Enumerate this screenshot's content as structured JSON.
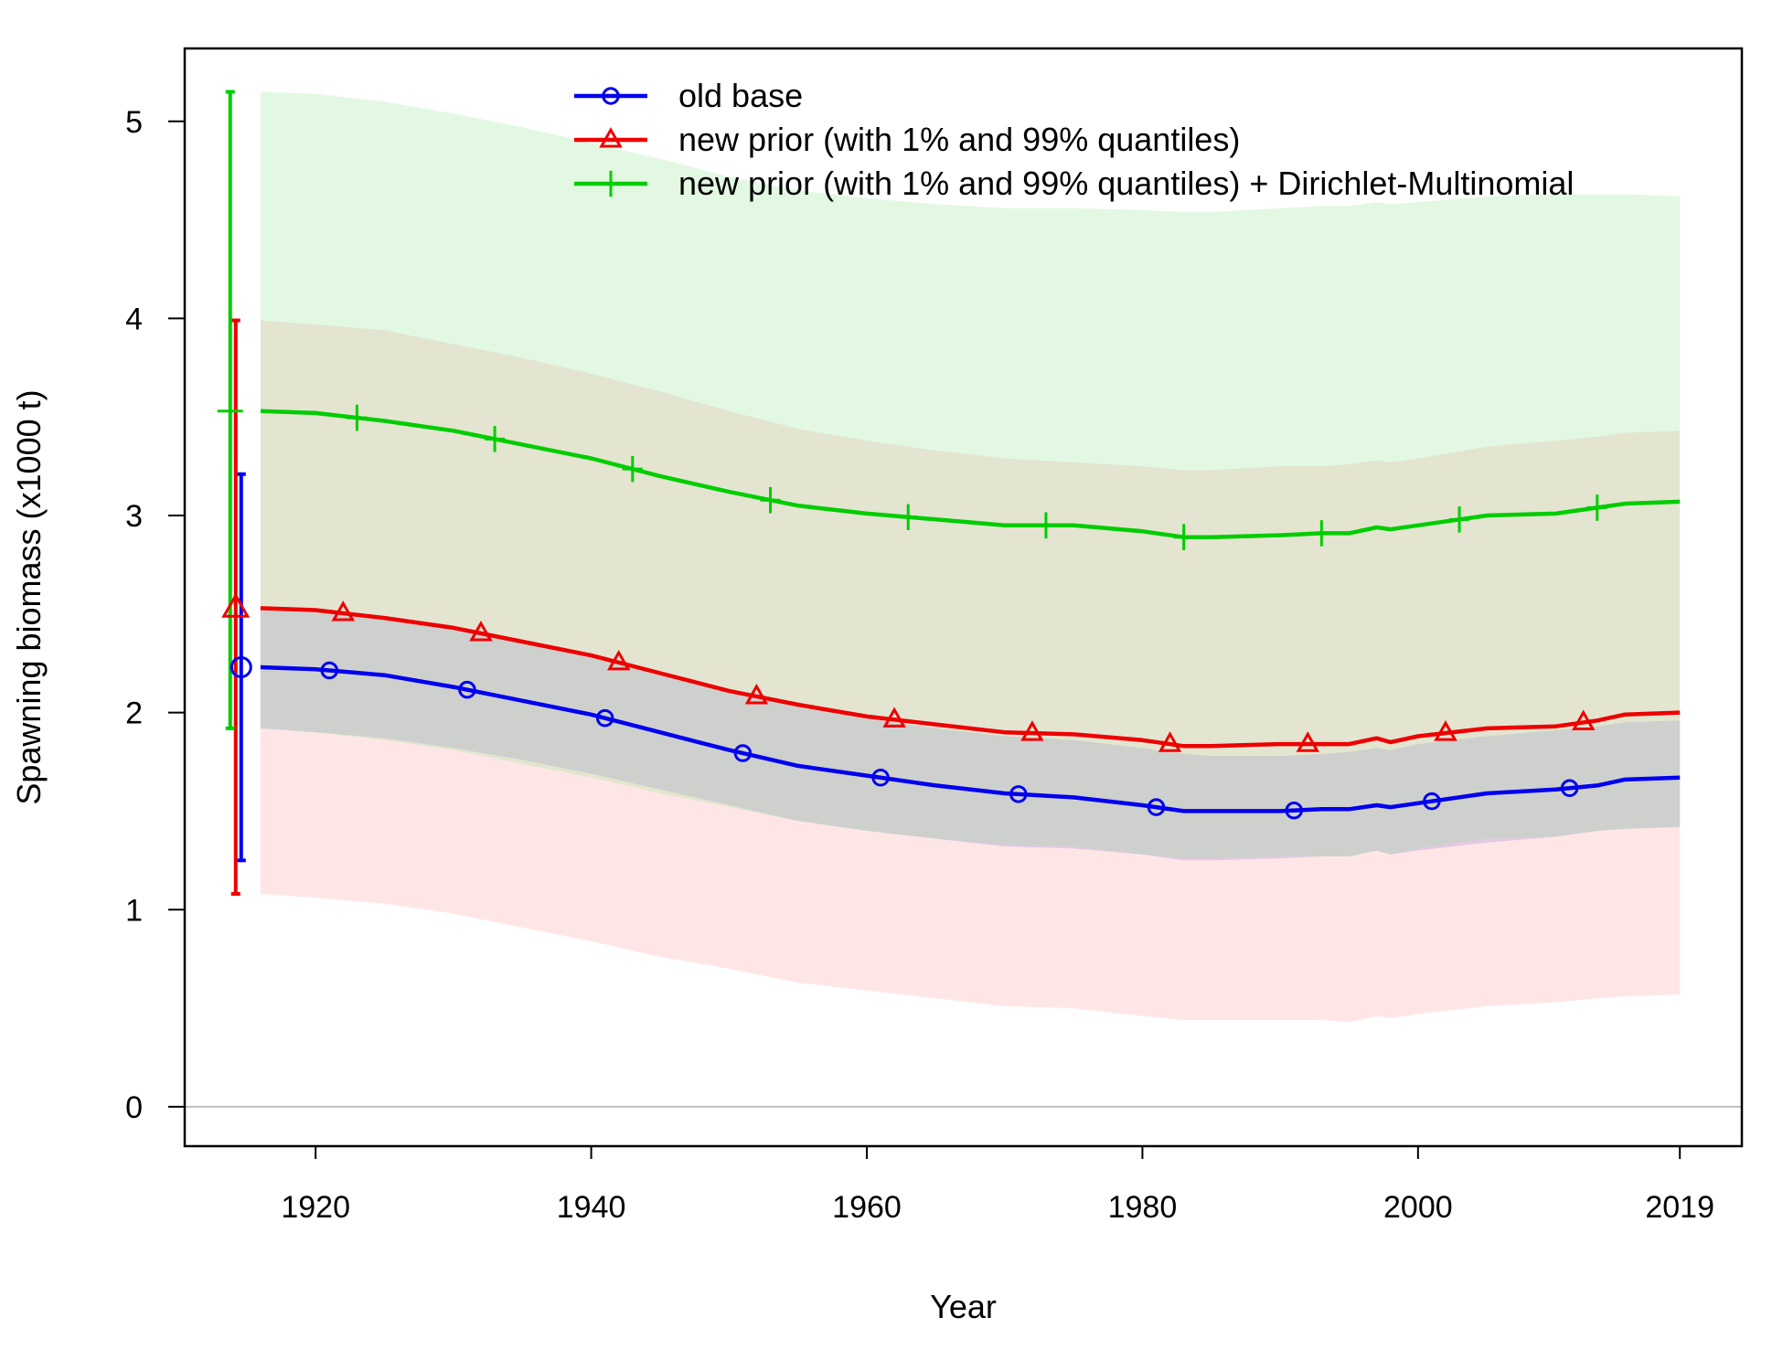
{
  "chart_data": {
    "type": "line",
    "xlabel": "Year",
    "ylabel": "Spawning biomass (x1000 t)",
    "xlim": [
      1910.5,
      2023.5
    ],
    "ylim": [
      -0.2,
      5.37
    ],
    "x_ticks": [
      1920,
      1940,
      1960,
      1980,
      2000,
      2019
    ],
    "x_tick_labels": [
      "1920",
      "1940",
      "1960",
      "1980",
      "2000",
      "2019"
    ],
    "y_ticks": [
      0,
      1,
      2,
      3,
      4,
      5
    ],
    "y_tick_labels": [
      "0",
      "1",
      "2",
      "3",
      "4",
      "5"
    ],
    "grid": false,
    "zero_line": true,
    "legend_position": "top-center",
    "x": [
      1916,
      1920,
      1925,
      1930,
      1935,
      1940,
      1945,
      1950,
      1955,
      1960,
      1965,
      1970,
      1975,
      1980,
      1983,
      1985,
      1990,
      1993,
      1995,
      1997,
      1998,
      2000,
      2005,
      2010,
      2013,
      2015,
      2019
    ],
    "series": [
      {
        "name": "old base",
        "color": "#0000EE",
        "marker": "circle",
        "initial": {
          "year": 1914.6,
          "value": 2.23,
          "low": 1.25,
          "high": 3.21
        },
        "values": [
          2.23,
          2.22,
          2.19,
          2.13,
          2.06,
          1.99,
          1.9,
          1.81,
          1.73,
          1.68,
          1.63,
          1.59,
          1.57,
          1.53,
          1.5,
          1.5,
          1.5,
          1.51,
          1.51,
          1.53,
          1.52,
          1.54,
          1.59,
          1.61,
          1.63,
          1.66,
          1.67
        ],
        "low": [
          1.92,
          1.9,
          1.87,
          1.82,
          1.76,
          1.69,
          1.61,
          1.53,
          1.45,
          1.4,
          1.36,
          1.32,
          1.31,
          1.28,
          1.25,
          1.25,
          1.26,
          1.27,
          1.27,
          1.3,
          1.28,
          1.3,
          1.34,
          1.37,
          1.4,
          1.41,
          1.42
        ],
        "high": [
          2.53,
          2.52,
          2.48,
          2.43,
          2.36,
          2.28,
          2.2,
          2.11,
          2.03,
          1.97,
          1.92,
          1.88,
          1.86,
          1.82,
          1.79,
          1.78,
          1.78,
          1.79,
          1.8,
          1.82,
          1.81,
          1.84,
          1.88,
          1.91,
          1.93,
          1.95,
          1.96
        ]
      },
      {
        "name": "new prior (with 1% and 99% quantiles)",
        "color": "#EE0000",
        "marker": "triangle",
        "initial": {
          "year": 1914.2,
          "value": 2.53,
          "low": 1.08,
          "high": 3.99
        },
        "values": [
          2.53,
          2.52,
          2.48,
          2.43,
          2.36,
          2.29,
          2.2,
          2.11,
          2.04,
          1.98,
          1.94,
          1.9,
          1.89,
          1.86,
          1.83,
          1.83,
          1.84,
          1.84,
          1.84,
          1.87,
          1.85,
          1.88,
          1.92,
          1.93,
          1.96,
          1.99,
          2.0
        ],
        "low": [
          1.08,
          1.06,
          1.03,
          0.98,
          0.91,
          0.84,
          0.76,
          0.7,
          0.63,
          0.59,
          0.55,
          0.51,
          0.5,
          0.46,
          0.44,
          0.44,
          0.44,
          0.44,
          0.43,
          0.46,
          0.45,
          0.47,
          0.51,
          0.53,
          0.55,
          0.56,
          0.57
        ],
        "high": [
          3.99,
          3.97,
          3.94,
          3.87,
          3.8,
          3.72,
          3.63,
          3.53,
          3.44,
          3.38,
          3.33,
          3.29,
          3.27,
          3.25,
          3.23,
          3.23,
          3.25,
          3.25,
          3.26,
          3.28,
          3.27,
          3.29,
          3.35,
          3.38,
          3.4,
          3.42,
          3.43
        ]
      },
      {
        "name": "new prior (with 1% and 99% quantiles) + Dirichlet-Multinomial",
        "color": "#00CD00",
        "marker": "plus",
        "initial": {
          "year": 1913.8,
          "value": 3.53,
          "low": 1.92,
          "high": 5.15
        },
        "values": [
          3.53,
          3.52,
          3.48,
          3.43,
          3.36,
          3.29,
          3.2,
          3.12,
          3.05,
          3.01,
          2.98,
          2.95,
          2.95,
          2.92,
          2.89,
          2.89,
          2.9,
          2.91,
          2.91,
          2.94,
          2.93,
          2.95,
          3.0,
          3.01,
          3.04,
          3.06,
          3.07
        ],
        "low": [
          1.92,
          1.9,
          1.86,
          1.81,
          1.74,
          1.67,
          1.59,
          1.52,
          1.45,
          1.4,
          1.36,
          1.33,
          1.32,
          1.28,
          1.26,
          1.26,
          1.27,
          1.27,
          1.27,
          1.3,
          1.28,
          1.31,
          1.36,
          1.37,
          1.4,
          1.41,
          1.42
        ],
        "high": [
          5.15,
          5.14,
          5.1,
          5.04,
          4.97,
          4.89,
          4.81,
          4.72,
          4.65,
          4.61,
          4.58,
          4.56,
          4.56,
          4.55,
          4.54,
          4.54,
          4.56,
          4.57,
          4.57,
          4.59,
          4.58,
          4.59,
          4.62,
          4.63,
          4.63,
          4.63,
          4.62
        ]
      }
    ],
    "band_colors": [
      "#6C6CEE",
      "#FF9A9A",
      "#8FE48F"
    ],
    "band_opacity": 0.25
  }
}
